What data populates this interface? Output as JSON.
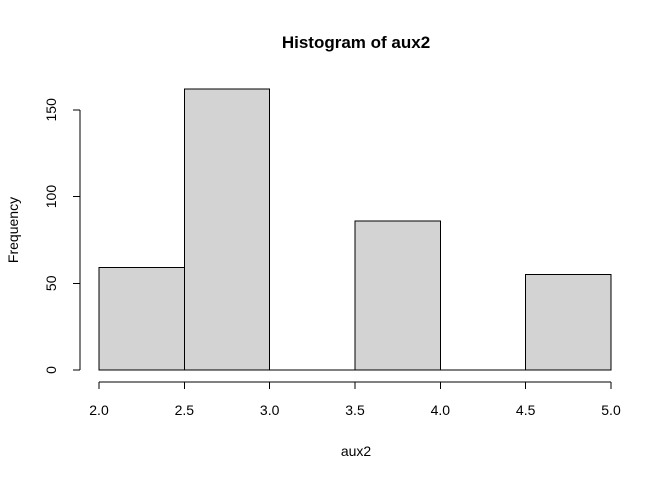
{
  "chart_data": {
    "type": "bar",
    "title": "Histogram of aux2",
    "xlabel": "aux2",
    "ylabel": "Frequency",
    "bins": [
      {
        "start": 2.0,
        "end": 2.5,
        "count": 59
      },
      {
        "start": 2.5,
        "end": 3.0,
        "count": 162
      },
      {
        "start": 3.0,
        "end": 3.5,
        "count": 0
      },
      {
        "start": 3.5,
        "end": 4.0,
        "count": 86
      },
      {
        "start": 4.0,
        "end": 4.5,
        "count": 0
      },
      {
        "start": 4.5,
        "end": 5.0,
        "count": 55
      }
    ],
    "xticks": [
      "2.0",
      "2.5",
      "3.0",
      "3.5",
      "4.0",
      "4.5",
      "5.0"
    ],
    "yticks": [
      "0",
      "50",
      "100",
      "150"
    ],
    "xlim": [
      2.0,
      5.0
    ],
    "ylim": [
      0,
      162
    ],
    "grid": false,
    "bar_fill": "#d3d3d3",
    "bar_stroke": "#000000"
  }
}
